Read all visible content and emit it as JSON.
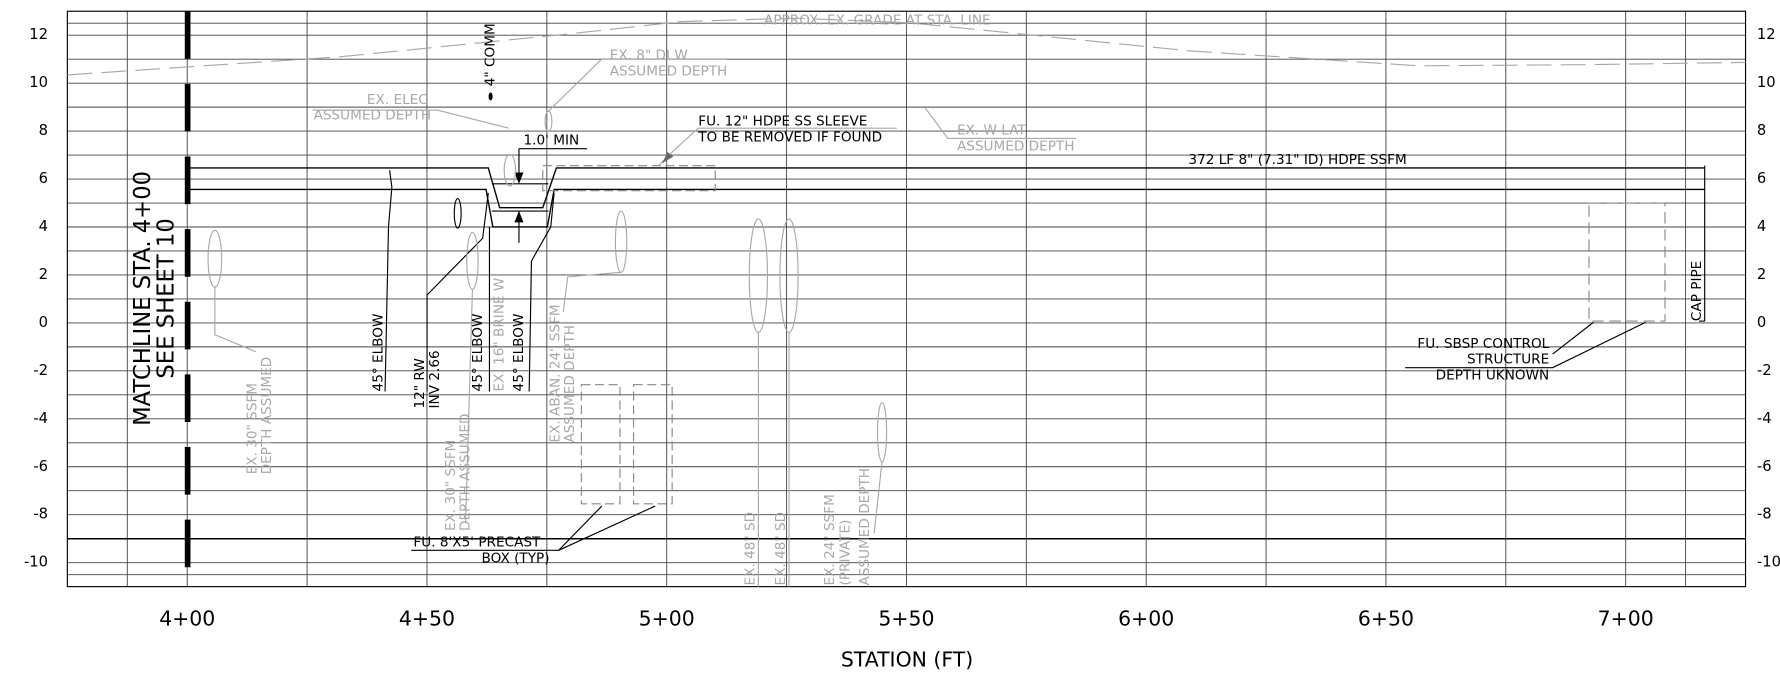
{
  "chart_data": {
    "type": "profile",
    "xlabel": "STATION (FT)",
    "xlim": [
      375,
      725
    ],
    "xticks": [
      {
        "value": 400,
        "label": "4+00"
      },
      {
        "value": 450,
        "label": "4+50"
      },
      {
        "value": 500,
        "label": "5+00"
      },
      {
        "value": 550,
        "label": "5+50"
      },
      {
        "value": 600,
        "label": "6+00"
      },
      {
        "value": 650,
        "label": "6+50"
      },
      {
        "value": 700,
        "label": "7+00"
      }
    ],
    "ylim": [
      -11,
      13
    ],
    "yticks": [
      12,
      10,
      8,
      6,
      4,
      2,
      0,
      -2,
      -4,
      -6,
      -8,
      -10
    ],
    "grid": true,
    "annotations": [
      "APPROX. EX. GRADE AT STA. LINE",
      "4\" COMM",
      "EX. 8\" DI W",
      "ASSUMED DEPTH",
      "EX. ELEC",
      "ASSUMED DEPTH",
      "FU. 12\" HDPE SS SLEEVE",
      "TO BE REMOVED IF FOUND",
      "EX. W LAT",
      "ASSUMED DEPTH",
      "1.0' MIN",
      "372 LF 8\" (7.31\" ID) HDPE SSFM",
      "MATCHLINE STA. 4+00",
      "SEE SHEET 10",
      "45° ELBOW",
      "45° ELBOW",
      "45° ELBOW",
      "12\" RW",
      "INV 2.66",
      "EX. 16\" BRINE W",
      "EX. ABAN. 24\" SSFM",
      "ASSUMED DEPTH",
      "EX. 30\" SSFM",
      "DEPTH ASSUMED",
      "EX. 30\" SSFM",
      "DEPTH ASSUMED",
      "FU. 8'X5' PRECAST",
      "BOX (TYP)",
      "EX. 48\" SD",
      "EX. 48\" SD",
      "EX. 24\" SSFM",
      "(PRIVATE)",
      "ASSUMED DEPTH",
      "CAP PIPE",
      "FU. SBSP CONTROL",
      "STRUCTURE",
      "DEPTH UKNOWN"
    ]
  }
}
